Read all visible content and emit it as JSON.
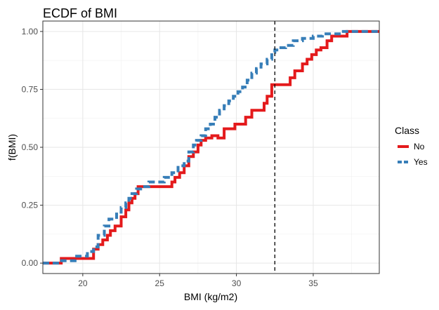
{
  "chart_data": {
    "type": "line",
    "title": "ECDF of BMI",
    "xlabel": "BMI (kg/m2)",
    "ylabel": "f(BMI)",
    "xlim": [
      17.4,
      39.3
    ],
    "ylim": [
      -0.045,
      1.045
    ],
    "xticks": [
      20,
      25,
      30,
      35
    ],
    "yticks": [
      0.0,
      0.25,
      0.5,
      0.75,
      1.0
    ],
    "ytick_labels": [
      "0.00",
      "0.25",
      "0.50",
      "0.75",
      "1.00"
    ],
    "grid": true,
    "legend": {
      "title": "Class",
      "position": "right"
    },
    "vline": {
      "x": 32.5,
      "style": "dashed",
      "color": "#000000"
    },
    "series": [
      {
        "name": "No",
        "color": "#e41a1c",
        "dash": "solid",
        "x": [
          17.4,
          18.6,
          20.7,
          21.0,
          21.3,
          21.6,
          21.8,
          22.1,
          22.3,
          22.5,
          22.8,
          23.0,
          23.2,
          23.4,
          23.6,
          25.8,
          26.0,
          26.3,
          26.6,
          26.9,
          27.2,
          27.5,
          27.7,
          28.0,
          28.2,
          28.4,
          28.8,
          29.2,
          29.6,
          29.9,
          30.2,
          30.6,
          31.0,
          31.4,
          31.8,
          32.0,
          32.3,
          32.6,
          33.5,
          33.8,
          34.0,
          34.3,
          34.6,
          34.9,
          35.2,
          35.5,
          35.9,
          36.2,
          37.2,
          39.3
        ],
        "y": [
          0.0,
          0.02,
          0.06,
          0.08,
          0.1,
          0.12,
          0.14,
          0.16,
          0.16,
          0.2,
          0.23,
          0.26,
          0.28,
          0.3,
          0.33,
          0.35,
          0.37,
          0.39,
          0.42,
          0.46,
          0.48,
          0.51,
          0.53,
          0.54,
          0.54,
          0.55,
          0.54,
          0.58,
          0.58,
          0.6,
          0.6,
          0.63,
          0.66,
          0.66,
          0.69,
          0.72,
          0.77,
          0.77,
          0.8,
          0.83,
          0.83,
          0.86,
          0.88,
          0.9,
          0.92,
          0.93,
          0.96,
          0.98,
          1.0,
          1.0
        ]
      },
      {
        "name": "Yes",
        "color": "#377eb8",
        "dash": "dashed",
        "x": [
          17.4,
          18.5,
          19.5,
          20.3,
          20.7,
          21.0,
          21.4,
          21.7,
          22.0,
          22.2,
          22.5,
          22.8,
          23.0,
          23.2,
          23.5,
          23.9,
          24.3,
          24.8,
          25.3,
          25.8,
          26.2,
          26.6,
          26.9,
          27.2,
          27.4,
          27.7,
          28.0,
          28.3,
          28.6,
          28.9,
          29.2,
          29.5,
          29.8,
          30.1,
          30.4,
          30.7,
          31.0,
          31.3,
          31.6,
          32.0,
          32.3,
          32.5,
          32.8,
          33.2,
          33.7,
          34.3,
          35.0,
          35.6,
          36.2,
          36.8,
          37.4,
          39.3
        ],
        "y": [
          0.0,
          0.01,
          0.03,
          0.05,
          0.07,
          0.12,
          0.16,
          0.19,
          0.19,
          0.22,
          0.24,
          0.26,
          0.28,
          0.3,
          0.32,
          0.33,
          0.35,
          0.35,
          0.37,
          0.39,
          0.42,
          0.44,
          0.48,
          0.51,
          0.53,
          0.55,
          0.58,
          0.6,
          0.63,
          0.66,
          0.68,
          0.7,
          0.72,
          0.74,
          0.76,
          0.79,
          0.82,
          0.84,
          0.86,
          0.88,
          0.91,
          0.92,
          0.93,
          0.94,
          0.96,
          0.97,
          0.98,
          0.99,
          0.99,
          1.0,
          1.0,
          1.0
        ]
      }
    ]
  }
}
